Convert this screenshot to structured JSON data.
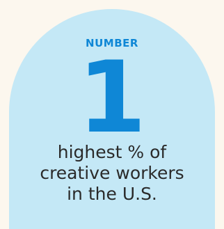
{
  "colors": {
    "background": "#fcf7ee",
    "card": "#c4e8f6",
    "accent": "#0f87d6",
    "text": "#2a2a2a"
  },
  "stat": {
    "eyebrow": "NUMBER",
    "value": "1",
    "caption_lines": [
      "highest % of",
      "creative workers",
      "in the U.S."
    ]
  }
}
